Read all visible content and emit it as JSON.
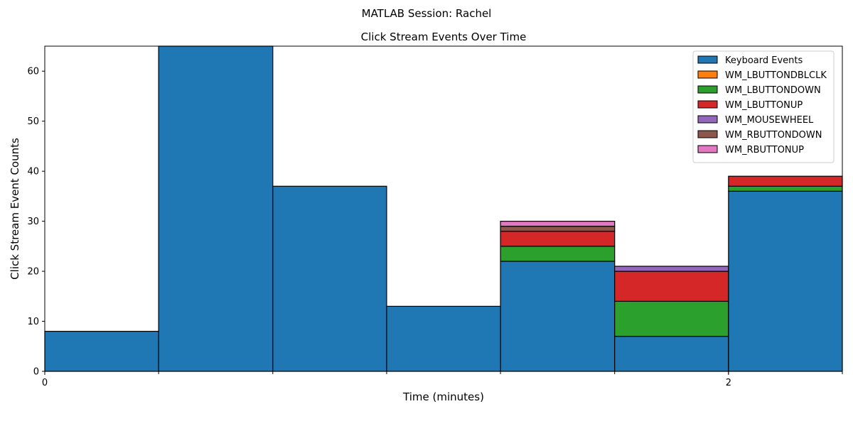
{
  "window_title": "MATLAB Session: Rachel",
  "chart_data": {
    "type": "bar",
    "stacked": true,
    "title": "Click Stream Events Over Time",
    "xlabel": "Time (minutes)",
    "ylabel": "Click Stream Event Counts",
    "xlim": [
      0,
      2.333
    ],
    "ylim": [
      0,
      65
    ],
    "bin_edges": [
      0,
      0.333,
      0.667,
      1.0,
      1.333,
      1.667,
      2.0,
      2.333
    ],
    "xticks": [
      {
        "value": 0,
        "label": "0"
      },
      {
        "value": 2,
        "label": "2"
      }
    ],
    "yticks": [
      {
        "value": 0,
        "label": "0"
      },
      {
        "value": 10,
        "label": "10"
      },
      {
        "value": 20,
        "label": "20"
      },
      {
        "value": 30,
        "label": "30"
      },
      {
        "value": 40,
        "label": "40"
      },
      {
        "value": 50,
        "label": "50"
      },
      {
        "value": 60,
        "label": "60"
      }
    ],
    "legend_position": "top-right",
    "grid": false,
    "series": [
      {
        "name": "Keyboard Events",
        "color": "#1f77b4",
        "values": [
          8,
          65,
          37,
          13,
          22,
          7,
          36
        ]
      },
      {
        "name": "WM_LBUTTONDBLCLK",
        "color": "#ff7f0e",
        "values": [
          0,
          0,
          0,
          0,
          0,
          0,
          0
        ]
      },
      {
        "name": "WM_LBUTTONDOWN",
        "color": "#2ca02c",
        "values": [
          0,
          0,
          0,
          0,
          3,
          7,
          1
        ]
      },
      {
        "name": "WM_LBUTTONUP",
        "color": "#d62728",
        "values": [
          0,
          0,
          0,
          0,
          3,
          6,
          2
        ]
      },
      {
        "name": "WM_MOUSEWHEEL",
        "color": "#9467bd",
        "values": [
          0,
          0,
          0,
          0,
          0,
          1,
          0
        ]
      },
      {
        "name": "WM_RBUTTONDOWN",
        "color": "#8c564b",
        "values": [
          0,
          0,
          0,
          0,
          1,
          0,
          0
        ]
      },
      {
        "name": "WM_RBUTTONUP",
        "color": "#e377c2",
        "values": [
          0,
          0,
          0,
          0,
          1,
          0,
          0
        ]
      }
    ]
  }
}
